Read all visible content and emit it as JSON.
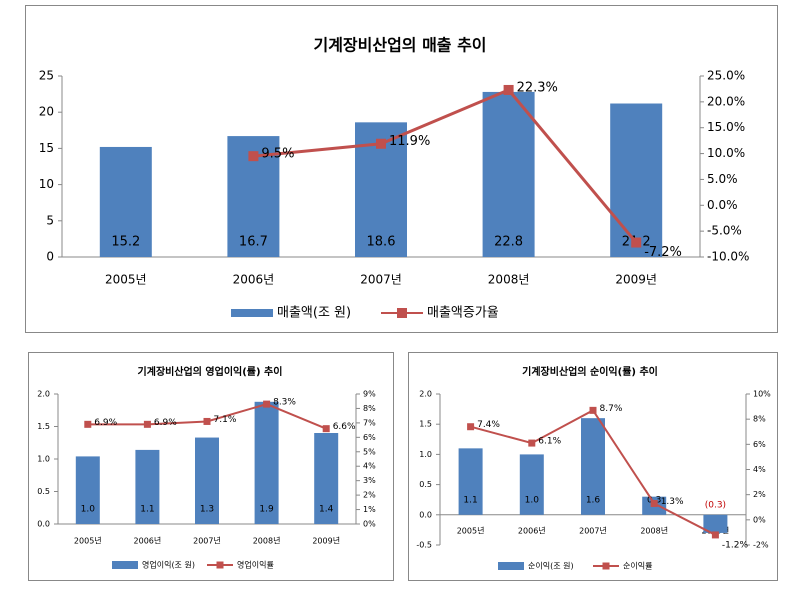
{
  "chart_data": [
    {
      "type": "bar",
      "title": "기계장비산업의 매출 추이",
      "categories": [
        "2005년",
        "2006년",
        "2007년",
        "2008년",
        "2009년"
      ],
      "series": [
        {
          "name": "매출액(조 원)",
          "color": "#4f81bd",
          "values": [
            15.2,
            16.7,
            18.6,
            22.8,
            21.2
          ]
        },
        {
          "name": "매출액증가율",
          "color": "#c0504d",
          "axis": "y2",
          "values": [
            null,
            9.5,
            11.9,
            22.3,
            -7.2
          ],
          "value_labels": [
            null,
            "9.5%",
            "11.9%",
            "22.3%",
            "-7.2%"
          ]
        }
      ],
      "ylim": [
        0,
        25
      ],
      "yticks": [
        0,
        5,
        10,
        15,
        20,
        25
      ],
      "y2lim": [
        -10,
        25
      ],
      "y2ticks": [
        {
          "value": -10,
          "label": "-10.0%"
        },
        {
          "value": -5,
          "label": "-5.0%"
        },
        {
          "value": 0,
          "label": "0.0%"
        },
        {
          "value": 5,
          "label": "5.0%"
        },
        {
          "value": 10,
          "label": "10.0%"
        },
        {
          "value": 15,
          "label": "15.0%"
        },
        {
          "value": 20,
          "label": "20.0%"
        },
        {
          "value": 25,
          "label": "25.0%"
        }
      ],
      "legend": "bottom"
    },
    {
      "type": "bar",
      "title": "기계장비산업의 영업이익(률) 추이",
      "categories": [
        "2005년",
        "2006년",
        "2007년",
        "2008년",
        "2009년"
      ],
      "series": [
        {
          "name": "영업이익(조 원)",
          "color": "#4f81bd",
          "values": [
            1.04,
            1.14,
            1.33,
            1.88,
            1.4
          ],
          "value_labels": [
            "1.0",
            "1.1",
            "1.3",
            "1.9",
            "1.4"
          ]
        },
        {
          "name": "영업이익률",
          "color": "#c0504d",
          "axis": "y2",
          "values": [
            6.9,
            6.9,
            7.1,
            8.3,
            6.6
          ],
          "value_labels": [
            "6.9%",
            "6.9%",
            "7.1%",
            "8.3%",
            "6.6%"
          ]
        }
      ],
      "ylim": [
        0,
        2
      ],
      "yticks": [
        {
          "value": 0,
          "label": "0.0"
        },
        {
          "value": 0.5,
          "label": "0.5"
        },
        {
          "value": 1,
          "label": "1.0"
        },
        {
          "value": 1.5,
          "label": "1.5"
        },
        {
          "value": 2,
          "label": "2.0"
        }
      ],
      "y2lim": [
        0,
        9
      ],
      "y2ticks": [
        {
          "value": 0,
          "label": "0%"
        },
        {
          "value": 1,
          "label": "1%"
        },
        {
          "value": 2,
          "label": "2%"
        },
        {
          "value": 3,
          "label": "3%"
        },
        {
          "value": 4,
          "label": "4%"
        },
        {
          "value": 5,
          "label": "5%"
        },
        {
          "value": 6,
          "label": "6%"
        },
        {
          "value": 7,
          "label": "7%"
        },
        {
          "value": 8,
          "label": "8%"
        },
        {
          "value": 9,
          "label": "9%"
        }
      ],
      "legend": "bottom"
    },
    {
      "type": "bar",
      "title": "기계장비산업의 순이익(률) 추이",
      "categories": [
        "2005년",
        "2006년",
        "2007년",
        "2008년",
        "2009년"
      ],
      "series": [
        {
          "name": "순이익(조 원)",
          "color": "#4f81bd",
          "values": [
            1.1,
            1.0,
            1.6,
            0.3,
            -0.3
          ],
          "value_labels": [
            "1.1",
            "1.0",
            "1.6",
            "0.3",
            "(0.3)"
          ]
        },
        {
          "name": "순이익률",
          "color": "#c0504d",
          "axis": "y2",
          "values": [
            7.4,
            6.1,
            8.7,
            1.3,
            -1.2
          ],
          "value_labels": [
            "7.4%",
            "6.1%",
            "8.7%",
            "1.3%",
            "-1.2%"
          ]
        }
      ],
      "ylim": [
        -0.5,
        2
      ],
      "yticks": [
        {
          "value": -0.5,
          "label": "-0.5"
        },
        {
          "value": 0,
          "label": "0.0"
        },
        {
          "value": 0.5,
          "label": "0.5"
        },
        {
          "value": 1,
          "label": "1.0"
        },
        {
          "value": 1.5,
          "label": "1.5"
        },
        {
          "value": 2,
          "label": "2.0"
        }
      ],
      "y2lim": [
        -2,
        10
      ],
      "y2ticks": [
        {
          "value": -2,
          "label": "-2%"
        },
        {
          "value": 0,
          "label": "0%"
        },
        {
          "value": 2,
          "label": "2%"
        },
        {
          "value": 4,
          "label": "4%"
        },
        {
          "value": 6,
          "label": "6%"
        },
        {
          "value": 8,
          "label": "8%"
        },
        {
          "value": 10,
          "label": "10%"
        }
      ],
      "legend": "bottom"
    }
  ]
}
